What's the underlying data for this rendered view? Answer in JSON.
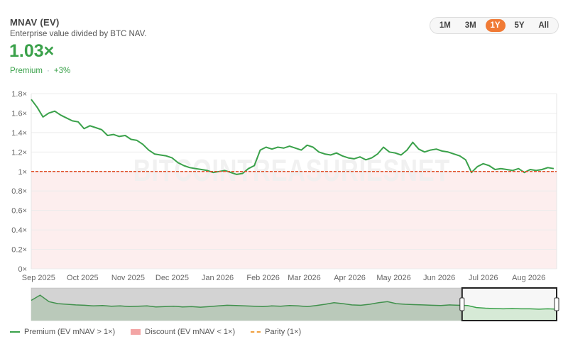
{
  "header": {
    "title": "MNAV (EV)",
    "subtitle": "Enterprise value divided by BTC NAV.",
    "value": "1.03×",
    "status": "Premium",
    "change": "+3%"
  },
  "ranges": {
    "items": [
      "1M",
      "3M",
      "1Y",
      "5Y",
      "All"
    ],
    "active": "1Y"
  },
  "watermark": "BITCOINTREASURIESNET",
  "legend": {
    "premium": "Premium (EV mNAV > 1×)",
    "discount": "Discount (EV mNAV < 1×)",
    "parity": "Parity (1×)"
  },
  "colors": {
    "line": "#3aa14a",
    "discount_fill": "#fdeeee",
    "parity": "#f07a35",
    "accent": "#f07a35"
  },
  "chart_data": {
    "type": "line",
    "title": "MNAV (EV)",
    "x_labels": [
      "Sep 2025",
      "Oct 2025",
      "Nov 2025",
      "Dec 2025",
      "Jan 2026",
      "Feb 2026",
      "Mar 2026",
      "Apr 2026",
      "May 2026",
      "Jun 2026",
      "Jul 2026",
      "Aug 2026"
    ],
    "x_label_days": [
      5,
      35,
      66,
      96,
      127,
      158,
      186,
      217,
      247,
      278,
      308,
      339
    ],
    "y_ticks": [
      "0×",
      "0.2×",
      "0.4×",
      "0.6×",
      "0.8×",
      "1×",
      "1.2×",
      "1.4×",
      "1.6×",
      "1.8×"
    ],
    "ylim": [
      0,
      1.8
    ],
    "xlim_days": [
      0,
      358
    ],
    "grid": true,
    "parity": 1.0,
    "series": [
      {
        "name": "Premium (EV mNAV > 1×)",
        "x_days": [
          0,
          4,
          8,
          12,
          16,
          20,
          24,
          28,
          32,
          36,
          40,
          44,
          48,
          52,
          56,
          60,
          64,
          68,
          72,
          76,
          80,
          84,
          88,
          92,
          96,
          100,
          104,
          108,
          112,
          116,
          120,
          124,
          128,
          132,
          136,
          140,
          144,
          148,
          152,
          156,
          160,
          164,
          168,
          172,
          176,
          180,
          184,
          188,
          192,
          196,
          200,
          204,
          208,
          212,
          216,
          220,
          224,
          228,
          232,
          236,
          240,
          244,
          248,
          252,
          256,
          260,
          264,
          268,
          272,
          276,
          280,
          284,
          288,
          292,
          296,
          300,
          304,
          308,
          312,
          316,
          320,
          324,
          328,
          332,
          336,
          340,
          344,
          348,
          352,
          356
        ],
        "values": [
          1.74,
          1.66,
          1.56,
          1.6,
          1.62,
          1.58,
          1.55,
          1.52,
          1.51,
          1.44,
          1.47,
          1.45,
          1.43,
          1.37,
          1.38,
          1.36,
          1.37,
          1.33,
          1.32,
          1.28,
          1.22,
          1.18,
          1.17,
          1.16,
          1.14,
          1.09,
          1.06,
          1.04,
          1.03,
          1.02,
          1.01,
          0.99,
          1.0,
          1.01,
          0.99,
          0.97,
          0.98,
          1.03,
          1.06,
          1.22,
          1.25,
          1.23,
          1.25,
          1.24,
          1.26,
          1.24,
          1.22,
          1.27,
          1.25,
          1.2,
          1.18,
          1.17,
          1.19,
          1.16,
          1.14,
          1.13,
          1.15,
          1.12,
          1.14,
          1.18,
          1.25,
          1.2,
          1.19,
          1.17,
          1.22,
          1.3,
          1.23,
          1.2,
          1.22,
          1.23,
          1.21,
          1.2,
          1.18,
          1.16,
          1.12,
          0.99,
          1.05,
          1.08,
          1.06,
          1.02,
          1.03,
          1.02,
          1.01,
          1.03,
          0.99,
          1.02,
          1.01,
          1.02,
          1.04,
          1.03
        ]
      }
    ],
    "navigator": {
      "values": [
        0.62,
        0.78,
        0.58,
        0.52,
        0.5,
        0.48,
        0.47,
        0.45,
        0.46,
        0.44,
        0.45,
        0.43,
        0.44,
        0.45,
        0.42,
        0.43,
        0.44,
        0.42,
        0.43,
        0.41,
        0.43,
        0.45,
        0.47,
        0.46,
        0.45,
        0.44,
        0.43,
        0.45,
        0.44,
        0.46,
        0.45,
        0.43,
        0.46,
        0.5,
        0.55,
        0.52,
        0.48,
        0.47,
        0.5,
        0.55,
        0.58,
        0.52,
        0.5,
        0.49,
        0.48,
        0.47,
        0.46,
        0.48,
        0.47,
        0.46,
        0.4,
        0.38,
        0.37,
        0.36,
        0.37,
        0.36,
        0.36,
        0.35,
        0.36,
        0.35
      ],
      "selected_fraction": [
        0.82,
        1.0
      ]
    }
  }
}
